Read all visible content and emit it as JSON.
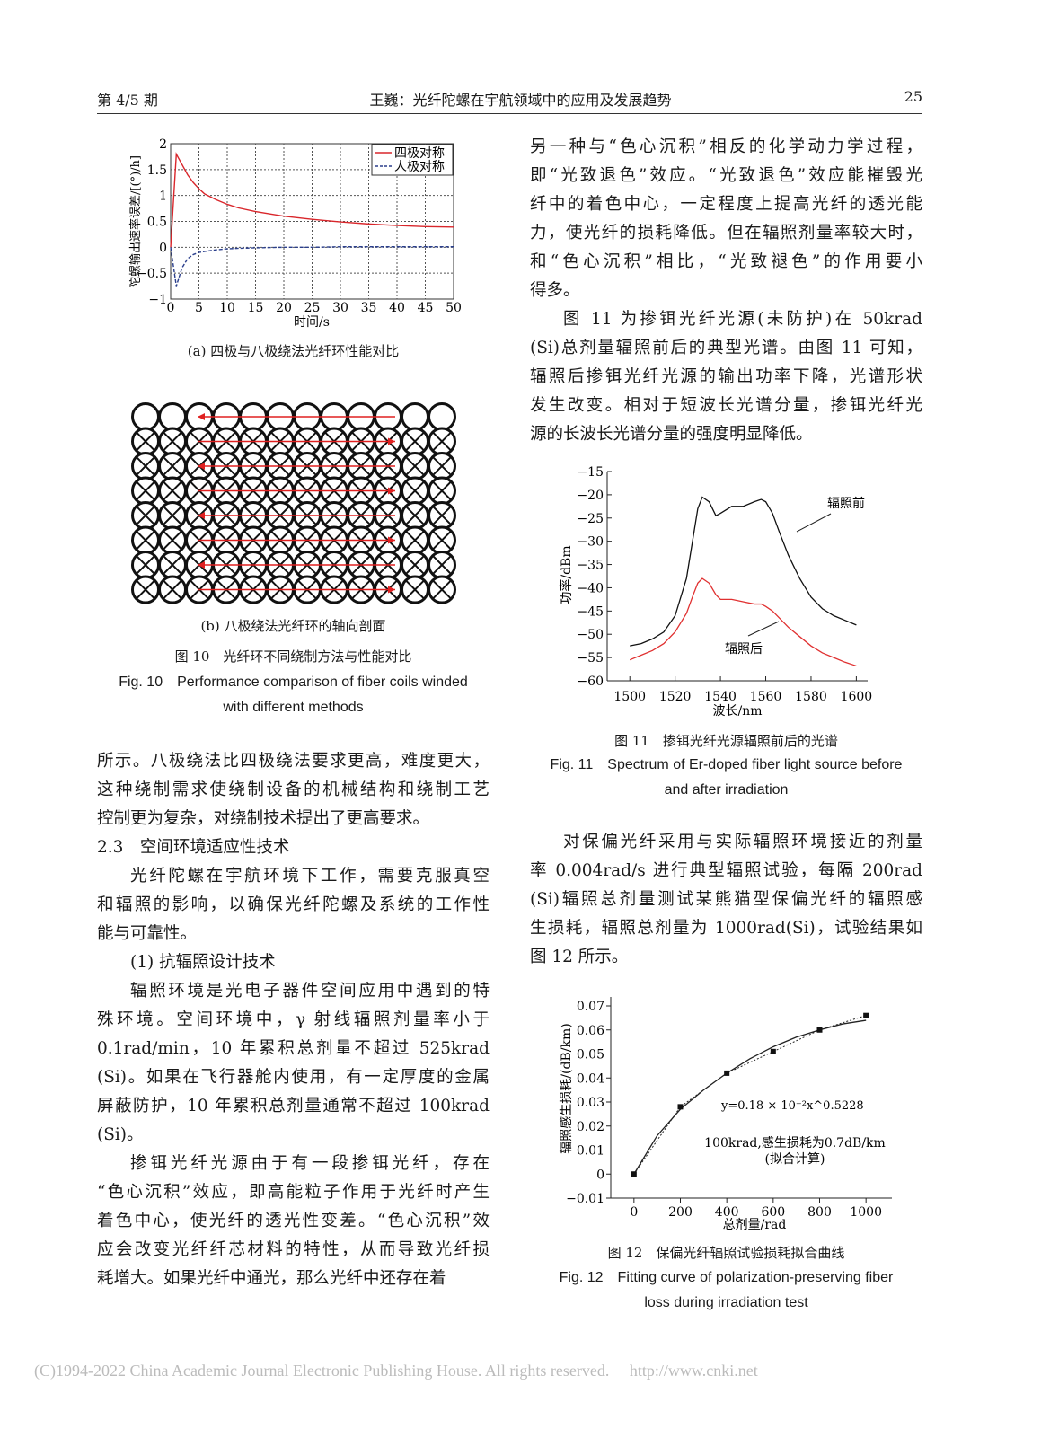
{
  "header": {
    "left": "第 4/5 期",
    "center": "王巍：光纤陀螺在宇航领域中的应用及发展趋势",
    "page": "25"
  },
  "fig10": {
    "sub_a": "(a) 四极与八极绕法光纤环性能对比",
    "sub_b": "(b) 八极绕法光纤环的轴向剖面",
    "caption_cn": "图 10　光纤环不同绕制方法与性能对比",
    "caption_en": [
      "Fig. 10　Performance comparison of fiber coils winded",
      "with different methods"
    ]
  },
  "fig11": {
    "caption_cn": "图 11　掺铒光纤光源辐照前后的光谱",
    "caption_en": [
      "Fig. 11　Spectrum of Er-doped fiber light source before",
      "and after irradiation"
    ]
  },
  "fig12": {
    "caption_cn": "图 12　保偏光纤辐照试验损耗拟合曲线",
    "caption_en": [
      "Fig. 12　Fitting curve of polarization-preserving fiber",
      "loss during irradiation test"
    ]
  },
  "left_text": [
    {
      "indent": false,
      "lines": [
        "所示。八极绕法比四极绕法要求更高，难度更大，",
        "这种绕制需求使绕制设备的机械结构和绕制工艺",
        "控制更为复杂，对绕制技术提出了更高要求。"
      ]
    },
    {
      "heading": true,
      "lines": [
        "2.3　空间环境适应性技术"
      ]
    },
    {
      "indent": true,
      "lines": [
        "光纤陀螺在宇航环境下工作，需要克服真空",
        "和辐照的影响，以确保光纤陀螺及系统的工作性",
        "能与可靠性。"
      ]
    },
    {
      "heading": true,
      "indent": true,
      "lines": [
        "(1) 抗辐照设计技术"
      ]
    },
    {
      "indent": true,
      "lines": [
        "辐照环境是光电子器件空间应用中遇到的特",
        "殊环境。空间环境中，γ 射线辐照剂量率小于",
        "0.1rad/min，10 年累积总剂量不超过 525krad",
        "(Si)。如果在飞行器舱内使用，有一定厚度的金属",
        "屏蔽防护，10 年累积总剂量通常不超过 100krad",
        "(Si)。"
      ]
    },
    {
      "indent": true,
      "lines": [
        "掺铒光纤光源由于有一段掺铒光纤，存在",
        "“色心沉积”效应，即高能粒子作用于光纤时产生",
        "着色中心，使光纤的透光性变差。“色心沉积”效",
        "应会改变光纤纤芯材料的特性，从而导致光纤损",
        "耗增大。如果光纤中通光，那么光纤中还存在着"
      ]
    }
  ],
  "right_text_top": [
    {
      "indent": false,
      "lines": [
        "另一种与“色心沉积”相反的化学动力学过程，",
        "即“光致退色”效应。“光致退色”效应能摧毁光",
        "纤中的着色中心，一定程度上提高光纤的透光能",
        "力，使光纤的损耗降低。但在辐照剂量率较大时，",
        "和“色心沉积”相比，“光致褪色”的作用要小",
        "得多。"
      ]
    },
    {
      "indent": true,
      "lines": [
        "图 11 为掺铒光纤光源(未防护)在 50krad",
        "(Si)总剂量辐照前后的典型光谱。由图 11 可知，",
        "辐照后掺铒光纤光源的输出功率下降，光谱形状",
        "发生改变。相对于短波长光谱分量，掺铒光纤光",
        "源的长波长光谱分量的强度明显降低。"
      ]
    }
  ],
  "right_text_mid": [
    {
      "indent": true,
      "lines": [
        "对保偏光纤采用与实际辐照环境接近的剂量",
        "率 0.004rad/s 进行典型辐照试验，每隔 200rad",
        "(Si)辐照总剂量测试某熊猫型保偏光纤的辐照感",
        "生损耗，辐照总剂量为 1000rad(Si)，试验结果如",
        "图 12 所示。"
      ]
    }
  ],
  "footer": "(C)1994-2022 China Academic Journal Electronic Publishing House. All rights reserved.　 http://www.cnki.net",
  "chart_data": [
    {
      "type": "line",
      "id": "fig10a",
      "xlabel": "时间/s",
      "ylabel": "陀螺输出速率误差/[(°)/h]",
      "xlim": [
        0,
        50
      ],
      "ylim": [
        -1,
        2
      ],
      "grid": true,
      "legend": "top-right",
      "xticks": [
        "0",
        "5",
        "10",
        "15",
        "20",
        "25",
        "30",
        "35",
        "40",
        "45",
        "50"
      ],
      "yticks": [
        "−1",
        "−0.5",
        "0",
        "0.5",
        "1",
        "1.5",
        "2"
      ],
      "x": [
        0,
        1,
        2,
        3,
        4,
        5,
        6,
        8,
        10,
        12,
        15,
        20,
        25,
        30,
        35,
        40,
        45,
        50
      ],
      "series": [
        {
          "name": "四极对称",
          "color": "#d9262b",
          "dash": false,
          "values": [
            0,
            1.8,
            1.6,
            1.4,
            1.25,
            1.13,
            1.03,
            0.92,
            0.83,
            0.76,
            0.69,
            0.6,
            0.54,
            0.49,
            0.45,
            0.42,
            0.4,
            0.39
          ]
        },
        {
          "name": "八极对称",
          "legend_text": "人极对称",
          "color": "#2b3f8c",
          "dash": true,
          "values": [
            0,
            -0.75,
            -0.4,
            -0.22,
            -0.14,
            -0.1,
            -0.08,
            -0.05,
            -0.03,
            -0.02,
            -0.01,
            0,
            0,
            0.01,
            0.01,
            0.01,
            0.01,
            0.01
          ]
        }
      ]
    },
    {
      "type": "line",
      "id": "fig11",
      "xlabel": "波长/nm",
      "ylabel": "功率/dBm",
      "xlim": [
        1490,
        1605
      ],
      "ylim": [
        -60,
        -15
      ],
      "xticks": [
        1500,
        1520,
        1540,
        1560,
        1580,
        1600
      ],
      "yticks": [
        -15,
        -20,
        -25,
        -30,
        -35,
        -40,
        -45,
        -50,
        -55,
        -60
      ],
      "x": [
        1500,
        1505,
        1510,
        1515,
        1520,
        1525,
        1528,
        1530,
        1532,
        1535,
        1538,
        1540,
        1545,
        1550,
        1555,
        1558,
        1560,
        1563,
        1566,
        1570,
        1575,
        1580,
        1585,
        1590,
        1595,
        1600
      ],
      "series": [
        {
          "name": "辐照前",
          "color": "#111111",
          "values": [
            -52.5,
            -52,
            -51,
            -49.5,
            -46,
            -38,
            -29,
            -23,
            -20.5,
            -21.5,
            -24.5,
            -24,
            -22.5,
            -22.5,
            -21.5,
            -21,
            -21.5,
            -24,
            -28,
            -33,
            -38,
            -42,
            -44.5,
            -46,
            -47,
            -48
          ]
        },
        {
          "name": "辐照后",
          "color": "#e03030",
          "values": [
            -55.5,
            -54.5,
            -53.5,
            -52,
            -49.5,
            -45.5,
            -41.5,
            -39,
            -38,
            -39,
            -41.5,
            -42.5,
            -42.5,
            -43,
            -43.5,
            -43.5,
            -44,
            -45,
            -46.5,
            -48.5,
            -50.5,
            -52.5,
            -54,
            -55,
            -56,
            -56.8
          ]
        }
      ]
    },
    {
      "type": "scatter",
      "id": "fig12",
      "xlabel": "总剂量/rad",
      "ylabel": "辐照感生损耗/(dB/km)",
      "xlim": [
        -100,
        1100
      ],
      "ylim": [
        -0.01,
        0.07
      ],
      "xticks": [
        0,
        200,
        400,
        600,
        800,
        1000
      ],
      "yticks": [
        "0.07",
        "0.06",
        "0.05",
        "0.04",
        "0.03",
        "0.02",
        "0.01",
        "0",
        "−0.01"
      ],
      "x": [
        0,
        200,
        400,
        600,
        800,
        1000
      ],
      "values": [
        0,
        0.028,
        0.042,
        0.051,
        0.06,
        0.066
      ],
      "fit": {
        "x": [
          0,
          100,
          200,
          300,
          400,
          500,
          600,
          700,
          800,
          900,
          1000
        ],
        "values": [
          0,
          0.016,
          0.027,
          0.035,
          0.042,
          0.048,
          0.053,
          0.057,
          0.06,
          0.0625,
          0.064
        ]
      },
      "annotations": [
        "y=0.18 × 10⁻²x^0.5228",
        "100krad,感生损耗为0.7dB/km",
        "(拟合计算)"
      ]
    }
  ]
}
